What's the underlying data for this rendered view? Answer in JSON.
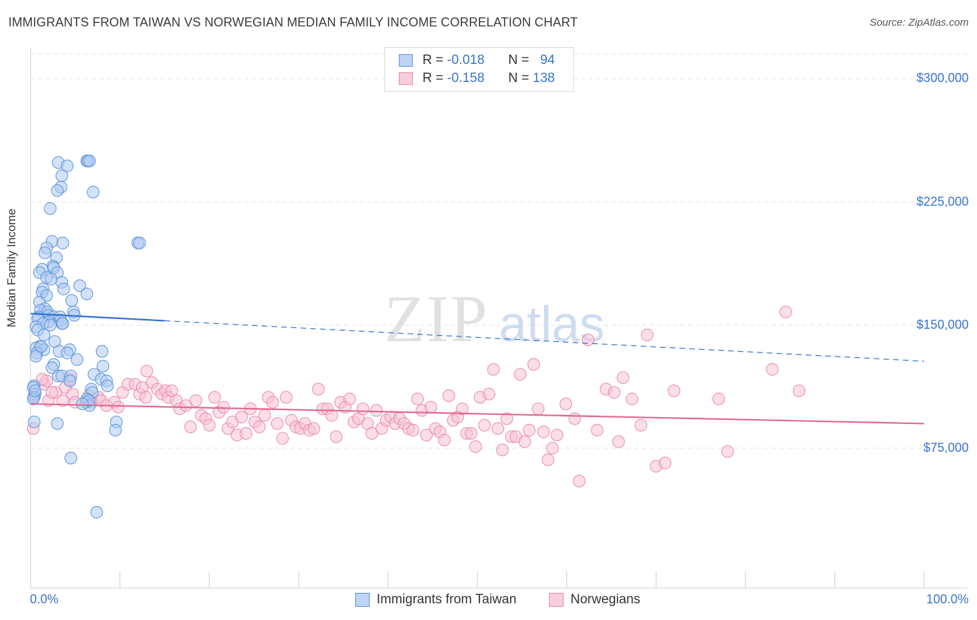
{
  "title": "IMMIGRANTS FROM TAIWAN VS NORWEGIAN MEDIAN FAMILY INCOME CORRELATION CHART",
  "source": "Source: ZipAtlas.com",
  "watermark": {
    "zip": "ZIP",
    "atlas": "atlas"
  },
  "colors": {
    "blue": "#5b93dc",
    "blue_fill": "#aecbf0",
    "blue_line": "#2f6fd0",
    "pink": "#e98aab",
    "pink_fill": "#f7c3d5",
    "pink_line": "#e06a95",
    "axis_text": "#3a74c9",
    "grid": "#e3e3e3"
  },
  "legend": {
    "taiwan": {
      "r_label": "R =",
      "r_value": "-0.018",
      "n_label": "N =",
      "n_value": "94"
    },
    "norwegians": {
      "r_label": "R =",
      "r_value": "-0.158",
      "n_label": "N =",
      "n_value": "138"
    }
  },
  "bottom_legend": {
    "taiwan": "Immigrants from Taiwan",
    "norwegians": "Norwegians"
  },
  "chart_data": {
    "type": "scatter",
    "title": "IMMIGRANTS FROM TAIWAN VS NORWEGIAN MEDIAN FAMILY INCOME CORRELATION CHART",
    "xlabel": "",
    "ylabel": "Median Family Income",
    "xlim": [
      0,
      100
    ],
    "ylim": [
      0,
      315000
    ],
    "x_tick_labels": [
      "0.0%",
      "100.0%"
    ],
    "y_ticks": [
      75000,
      150000,
      225000,
      300000
    ],
    "y_tick_labels": [
      "$75,000",
      "$150,000",
      "$225,000",
      "$300,000"
    ],
    "grid": true,
    "series": [
      {
        "name": "Immigrants from Taiwan",
        "color": "blue",
        "trend": {
          "x0": 0,
          "y0": 157000,
          "x1": 100,
          "y1": 128000,
          "solid_until": 15
        },
        "points": [
          [
            3.1,
            249000
          ],
          [
            4.1,
            247000
          ],
          [
            6.3,
            250000
          ],
          [
            6.4,
            250000
          ],
          [
            6.6,
            250000
          ],
          [
            3.5,
            241000
          ],
          [
            3.4,
            234000
          ],
          [
            3.0,
            232000
          ],
          [
            7.0,
            231000
          ],
          [
            2.2,
            221000
          ],
          [
            2.4,
            201000
          ],
          [
            3.6,
            200000
          ],
          [
            12.0,
            200000
          ],
          [
            12.2,
            200000
          ],
          [
            1.8,
            197000
          ],
          [
            1.6,
            194000
          ],
          [
            2.9,
            191000
          ],
          [
            2.5,
            186000
          ],
          [
            2.6,
            185000
          ],
          [
            1.3,
            184000
          ],
          [
            1.0,
            182000
          ],
          [
            3.0,
            182000
          ],
          [
            1.8,
            179000
          ],
          [
            2.3,
            178000
          ],
          [
            3.5,
            176000
          ],
          [
            5.5,
            174000
          ],
          [
            1.4,
            172000
          ],
          [
            3.7,
            172000
          ],
          [
            1.3,
            170000
          ],
          [
            6.3,
            169000
          ],
          [
            1.8,
            168000
          ],
          [
            4.6,
            165000
          ],
          [
            1.0,
            164000
          ],
          [
            1.6,
            160000
          ],
          [
            1.1,
            159000
          ],
          [
            4.8,
            158000
          ],
          [
            1.9,
            158000
          ],
          [
            2.0,
            156000
          ],
          [
            4.9,
            156000
          ],
          [
            0.9,
            155000
          ],
          [
            2.6,
            155000
          ],
          [
            3.3,
            155000
          ],
          [
            0.8,
            154000
          ],
          [
            3.4,
            153000
          ],
          [
            2.0,
            152000
          ],
          [
            1.4,
            151000
          ],
          [
            3.5,
            151000
          ],
          [
            3.6,
            151000
          ],
          [
            0.6,
            149000
          ],
          [
            0.8,
            147000
          ],
          [
            1.5,
            144000
          ],
          [
            2.7,
            140000
          ],
          [
            1.0,
            137000
          ],
          [
            0.6,
            136000
          ],
          [
            1.5,
            135000
          ],
          [
            4.4,
            135000
          ],
          [
            3.2,
            134000
          ],
          [
            8.0,
            134000
          ],
          [
            0.7,
            133000
          ],
          [
            4.1,
            133000
          ],
          [
            0.6,
            131000
          ],
          [
            5.2,
            129000
          ],
          [
            2.6,
            126000
          ],
          [
            8.1,
            125000
          ],
          [
            2.4,
            124000
          ],
          [
            7.1,
            120000
          ],
          [
            3.1,
            119000
          ],
          [
            3.5,
            119000
          ],
          [
            4.5,
            119000
          ],
          [
            7.9,
            117000
          ],
          [
            4.4,
            116000
          ],
          [
            8.5,
            116000
          ],
          [
            0.4,
            113000
          ],
          [
            8.6,
            113000
          ],
          [
            0.3,
            112000
          ],
          [
            6.8,
            111000
          ],
          [
            6.9,
            109000
          ],
          [
            0.5,
            108000
          ],
          [
            0.4,
            106000
          ],
          [
            6.3,
            105000
          ],
          [
            6.2,
            103000
          ],
          [
            6.6,
            101000
          ],
          [
            0.4,
            91000
          ],
          [
            3.0,
            90000
          ],
          [
            9.6,
            91000
          ],
          [
            9.5,
            86000
          ],
          [
            4.5,
            69000
          ],
          [
            7.4,
            36000
          ],
          [
            6.5,
            104000
          ],
          [
            5.8,
            102000
          ],
          [
            0.3,
            105000
          ],
          [
            1.2,
            137000
          ],
          [
            2.2,
            150000
          ],
          [
            0.5,
            110000
          ]
        ]
      },
      {
        "name": "Norwegians",
        "color": "pink",
        "trend": {
          "x0": 0,
          "y0": 102000,
          "x1": 100,
          "y1": 90000
        },
        "points": [
          [
            0.3,
            87000
          ],
          [
            0.4,
            107000
          ],
          [
            2.0,
            104000
          ],
          [
            1.5,
            114000
          ],
          [
            1.8,
            116000
          ],
          [
            2.8,
            109000
          ],
          [
            3.6,
            104000
          ],
          [
            3.9,
            112000
          ],
          [
            4.4,
            117000
          ],
          [
            4.7,
            108000
          ],
          [
            5.0,
            103000
          ],
          [
            6.5,
            107000
          ],
          [
            7.6,
            106000
          ],
          [
            7.9,
            104000
          ],
          [
            8.5,
            101000
          ],
          [
            9.4,
            103000
          ],
          [
            9.8,
            100000
          ],
          [
            10.3,
            109000
          ],
          [
            10.9,
            114000
          ],
          [
            11.7,
            114000
          ],
          [
            12.2,
            108000
          ],
          [
            12.5,
            112000
          ],
          [
            12.9,
            106000
          ],
          [
            13.0,
            122000
          ],
          [
            13.6,
            115000
          ],
          [
            14.2,
            111000
          ],
          [
            14.7,
            108000
          ],
          [
            15.1,
            110000
          ],
          [
            15.4,
            106000
          ],
          [
            15.8,
            110000
          ],
          [
            16.3,
            104000
          ],
          [
            16.7,
            99000
          ],
          [
            17.4,
            101000
          ],
          [
            17.9,
            88000
          ],
          [
            18.5,
            104000
          ],
          [
            19.1,
            95000
          ],
          [
            19.6,
            93000
          ],
          [
            20.0,
            89000
          ],
          [
            20.6,
            106000
          ],
          [
            21.1,
            97000
          ],
          [
            21.6,
            100000
          ],
          [
            22.1,
            87000
          ],
          [
            22.6,
            91000
          ],
          [
            23.1,
            83000
          ],
          [
            23.6,
            94000
          ],
          [
            24.1,
            84000
          ],
          [
            24.6,
            99000
          ],
          [
            25.1,
            91000
          ],
          [
            25.6,
            88000
          ],
          [
            26.2,
            95000
          ],
          [
            26.6,
            106000
          ],
          [
            27.1,
            103000
          ],
          [
            27.6,
            90000
          ],
          [
            28.2,
            81000
          ],
          [
            28.6,
            106000
          ],
          [
            29.2,
            92000
          ],
          [
            29.7,
            88000
          ],
          [
            30.2,
            87000
          ],
          [
            30.7,
            90000
          ],
          [
            31.2,
            86000
          ],
          [
            31.7,
            87000
          ],
          [
            32.2,
            111000
          ],
          [
            32.7,
            99000
          ],
          [
            33.2,
            99000
          ],
          [
            33.7,
            95000
          ],
          [
            34.2,
            82000
          ],
          [
            34.7,
            103000
          ],
          [
            35.2,
            100000
          ],
          [
            35.7,
            105000
          ],
          [
            36.2,
            91000
          ],
          [
            36.7,
            93000
          ],
          [
            37.2,
            99000
          ],
          [
            37.7,
            90000
          ],
          [
            38.2,
            84000
          ],
          [
            38.7,
            98000
          ],
          [
            39.3,
            87000
          ],
          [
            39.8,
            92000
          ],
          [
            40.3,
            94000
          ],
          [
            40.8,
            90000
          ],
          [
            41.3,
            93000
          ],
          [
            41.8,
            90000
          ],
          [
            42.3,
            87000
          ],
          [
            42.8,
            86000
          ],
          [
            43.3,
            105000
          ],
          [
            43.8,
            98000
          ],
          [
            44.3,
            83000
          ],
          [
            44.8,
            100000
          ],
          [
            45.3,
            87000
          ],
          [
            45.8,
            85000
          ],
          [
            46.3,
            80000
          ],
          [
            46.8,
            107000
          ],
          [
            47.3,
            92000
          ],
          [
            47.8,
            94000
          ],
          [
            48.3,
            99000
          ],
          [
            48.8,
            84000
          ],
          [
            49.3,
            84000
          ],
          [
            49.8,
            76000
          ],
          [
            50.3,
            106000
          ],
          [
            50.8,
            89000
          ],
          [
            51.3,
            108000
          ],
          [
            51.8,
            123000
          ],
          [
            52.3,
            87000
          ],
          [
            52.8,
            74000
          ],
          [
            53.3,
            93000
          ],
          [
            53.8,
            82000
          ],
          [
            54.3,
            82000
          ],
          [
            54.8,
            120000
          ],
          [
            55.3,
            79000
          ],
          [
            55.8,
            86000
          ],
          [
            56.3,
            126000
          ],
          [
            56.8,
            99000
          ],
          [
            57.4,
            85000
          ],
          [
            57.9,
            68000
          ],
          [
            58.4,
            75000
          ],
          [
            58.9,
            83000
          ],
          [
            59.9,
            102000
          ],
          [
            60.9,
            93000
          ],
          [
            61.4,
            55000
          ],
          [
            62.4,
            141000
          ],
          [
            63.4,
            86000
          ],
          [
            64.4,
            111000
          ],
          [
            65.3,
            109000
          ],
          [
            65.8,
            79000
          ],
          [
            66.3,
            118000
          ],
          [
            67.3,
            105000
          ],
          [
            68.3,
            89000
          ],
          [
            69.0,
            144000
          ],
          [
            70.0,
            64000
          ],
          [
            71.0,
            66000
          ],
          [
            72.0,
            110000
          ],
          [
            77.0,
            105000
          ],
          [
            78.0,
            73000
          ],
          [
            83.0,
            123000
          ],
          [
            84.5,
            158000
          ],
          [
            86.0,
            110000
          ],
          [
            1.3,
            117000
          ],
          [
            2.4,
            109000
          ],
          [
            6.8,
            103000
          ]
        ]
      }
    ]
  }
}
